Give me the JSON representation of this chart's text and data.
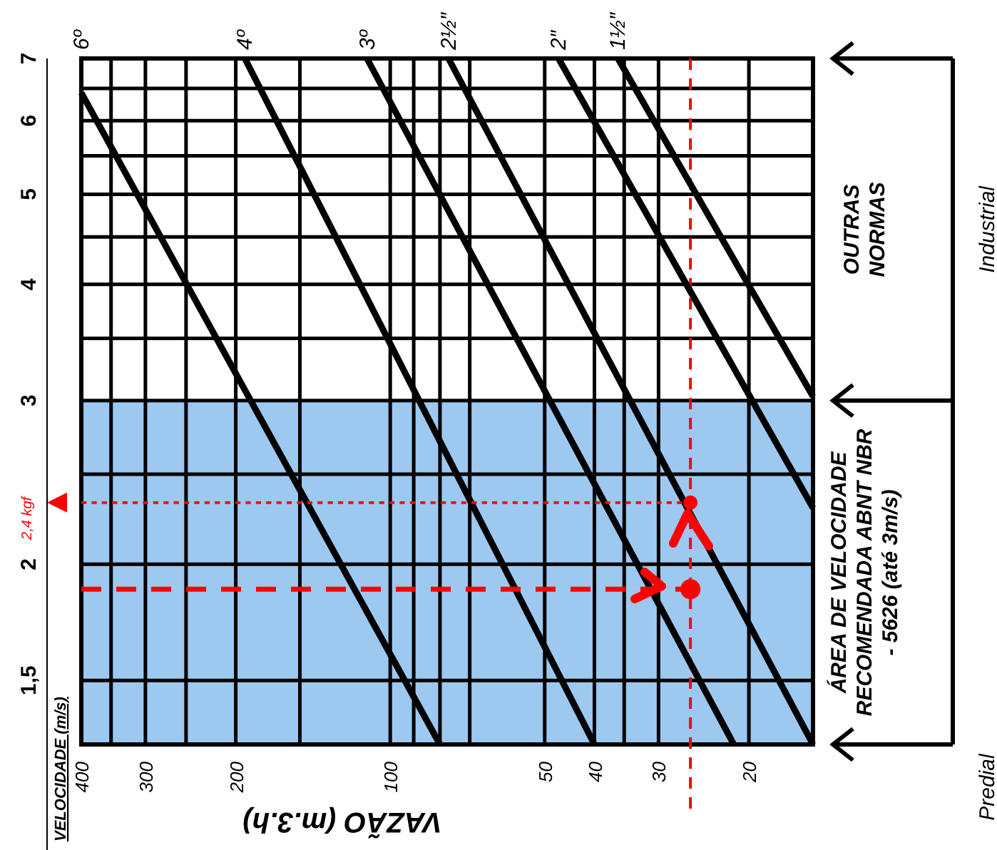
{
  "chart_data": {
    "type": "line",
    "xlabel": "VAZÃO (m.3.h)",
    "ylabel": "VELOCIDADE (m/s)",
    "log": "xy",
    "grid": true,
    "legend": false,
    "xlim": [
      400,
      15
    ],
    "ylim": [
      1.28,
      7
    ],
    "xticks": [
      400,
      {
        "value": 350,
        "label": null
      },
      300,
      {
        "value": 250,
        "label": null
      },
      200,
      {
        "value": 150,
        "label": null
      },
      100,
      {
        "value": 90,
        "label": null
      },
      {
        "value": 80,
        "label": null
      },
      {
        "value": 70,
        "label": null
      },
      50,
      40,
      {
        "value": 35,
        "label": null
      },
      30,
      20
    ],
    "yticks": [
      {
        "value": 1.5,
        "label": "1,5"
      },
      2,
      {
        "value": 2.5,
        "label": null
      },
      3,
      {
        "value": 3.5,
        "label": null
      },
      4,
      {
        "value": 4.5,
        "label": null
      },
      5,
      {
        "value": 5.5,
        "label": null
      },
      6,
      {
        "value": 6.5,
        "label": null
      },
      7
    ],
    "series": [
      {
        "name": "6º",
        "color": "#000000",
        "x": [
          400,
          80
        ],
        "values": [
          6.43,
          1.28
        ]
      },
      {
        "name": "4º",
        "color": "#000000",
        "x": [
          192,
          40
        ],
        "values": [
          7,
          1.28
        ]
      },
      {
        "name": "3º",
        "color": "#000000",
        "x": [
          111,
          21.4
        ],
        "values": [
          7,
          1.28
        ]
      },
      {
        "name": "2½″",
        "color": "#000000",
        "x": [
          77,
          15
        ],
        "values": [
          7,
          1.28
        ]
      },
      {
        "name": "2″",
        "color": "#000000",
        "x": [
          47,
          15
        ],
        "values": [
          7,
          2.3
        ]
      },
      {
        "name": "1½″",
        "color": "#000000",
        "x": [
          36,
          15
        ],
        "values": [
          7,
          3.03
        ]
      },
      {
        "type": "line",
        "color": "#ff0000",
        "x": [
          400,
          27
        ],
        "values": [
          1.88,
          1.88
        ],
        "line_style": "dashed"
      },
      {
        "type": "line",
        "name": "2,4 kgf",
        "color": "#ff0000",
        "x": [
          400,
          26
        ],
        "values": [
          2.33,
          2.33
        ],
        "line_style": "dotted"
      },
      {
        "type": "scatter",
        "color": "#ff0000",
        "x": [
          26,
          26
        ],
        "values": [
          1.88,
          2.33
        ],
        "marker": "circle"
      }
    ],
    "ref_lines": [
      {
        "axis": "x",
        "value": 26,
        "color": "#ff0000",
        "line_style": "dashed"
      }
    ],
    "bands": [
      {
        "axis": "y",
        "from": 1.28,
        "to": 3,
        "label": "ÁREA DE VELOCIDADE RECOMENDADA ABNT NBR - 5626 (até 3m/s)",
        "color": "#9dc8f0"
      }
    ],
    "annotations": [
      "OUTRAS NORMAS",
      "Industrial",
      "Predial"
    ]
  }
}
